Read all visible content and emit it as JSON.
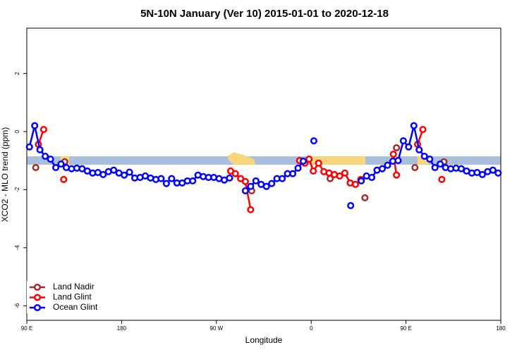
{
  "chart_data": {
    "type": "line",
    "title": "5N-10N January (Ver 10)   2015-01-01 to 2020-12-18",
    "x_label": "Longitude",
    "y_label": "XCO2 - MLO trend (ppm)",
    "xlim": [
      90,
      540
    ],
    "ylim": [
      -6.5,
      3.56
    ],
    "xticks": [
      {
        "value": 90,
        "label": "90 E"
      },
      {
        "value": 180,
        "label": "180"
      },
      {
        "value": 270,
        "label": "90 W"
      },
      {
        "value": 360,
        "label": "0"
      },
      {
        "value": 450,
        "label": "90 E"
      },
      {
        "value": 540,
        "label": "180"
      }
    ],
    "yticks": [
      2,
      0,
      -2,
      -4,
      -6
    ],
    "legend": "bottom-left",
    "series": [
      {
        "name": "Land Nadir",
        "color": "#a52a2a",
        "x": [
          98.5,
          126,
          303.5,
          349,
          378,
          411,
          441,
          458.5,
          486
        ],
        "values": [
          -1.24,
          -1.04,
          -2.04,
          -1.0,
          -1.62,
          -2.28,
          -0.56,
          -1.24,
          -1.04
        ]
      },
      {
        "name": "Land Glint",
        "color": "#ff0000",
        "x": [
          101,
          106,
          125,
          283.5,
          288,
          293,
          297.5,
          302.5,
          349,
          354,
          358,
          362,
          367,
          372,
          377,
          382,
          387,
          392,
          397,
          402,
          407,
          438,
          441,
          461,
          466,
          484
        ],
        "values": [
          -0.44,
          0.07,
          -1.65,
          -1.36,
          -1.45,
          -1.62,
          -1.72,
          -2.69,
          -1.0,
          -1.09,
          -0.95,
          -1.36,
          -1.09,
          -1.38,
          -1.43,
          -1.48,
          -1.53,
          -1.43,
          -1.77,
          -1.82,
          -1.65,
          -0.78,
          -1.5,
          -0.44,
          0.07,
          -1.65
        ]
      },
      {
        "name": "Ocean Glint",
        "color": "#0000ff",
        "x": [
          92.5,
          97.5,
          102.5,
          107.5,
          112.5,
          117.5,
          122.5,
          127.5,
          132.5,
          137.5,
          142.5,
          147.5,
          152.5,
          157.5,
          162.5,
          167.5,
          172.5,
          177.5,
          182.5,
          187.5,
          192.5,
          197.5,
          202.5,
          207.5,
          212.5,
          217.5,
          222.5,
          227.5,
          232.5,
          237.5,
          242.5,
          247.5,
          252.5,
          257.5,
          262.5,
          267.5,
          272.5,
          277.5,
          282.5,
          297.5,
          302.5,
          307.5,
          312.5,
          317.5,
          322.5,
          327.5,
          332.5,
          337.5,
          342.5,
          347.5,
          352.5,
          362.5,
          397.5,
          407.5,
          412.5,
          417.5,
          422.5,
          427.5,
          432.5,
          437.5,
          442.5,
          447.5,
          452.5,
          457.5,
          462.5,
          467.5,
          472.5,
          477.5,
          482.5,
          487.5,
          492.5,
          497.5,
          502.5,
          507.5,
          512.5,
          517.5,
          522.5,
          527.5,
          532.5,
          537.5
        ],
        "values": [
          -0.53,
          0.2,
          -0.63,
          -0.85,
          -0.95,
          -1.24,
          -1.12,
          -1.24,
          -1.28,
          -1.26,
          -1.28,
          -1.36,
          -1.43,
          -1.41,
          -1.48,
          -1.38,
          -1.33,
          -1.43,
          -1.5,
          -1.4,
          -1.6,
          -1.58,
          -1.53,
          -1.6,
          -1.65,
          -1.62,
          -1.79,
          -1.62,
          -1.77,
          -1.77,
          -1.7,
          -1.7,
          -1.5,
          -1.55,
          -1.58,
          -1.58,
          -1.62,
          -1.67,
          -1.6,
          -2.04,
          -1.89,
          -1.7,
          -1.82,
          -1.89,
          -1.79,
          -1.62,
          -1.62,
          -1.45,
          -1.45,
          -1.26,
          -1.02,
          -0.32,
          -2.55,
          -1.7,
          -1.53,
          -1.58,
          -1.33,
          -1.28,
          -1.16,
          -1.02,
          -1.0,
          -0.32,
          -0.53,
          0.2,
          -0.63,
          -0.85,
          -0.95,
          -1.24,
          -1.12,
          -1.24,
          -1.28,
          -1.26,
          -1.28,
          -1.36,
          -1.43,
          -1.41,
          -1.48,
          -1.38,
          -1.33,
          -1.43
        ]
      }
    ]
  }
}
